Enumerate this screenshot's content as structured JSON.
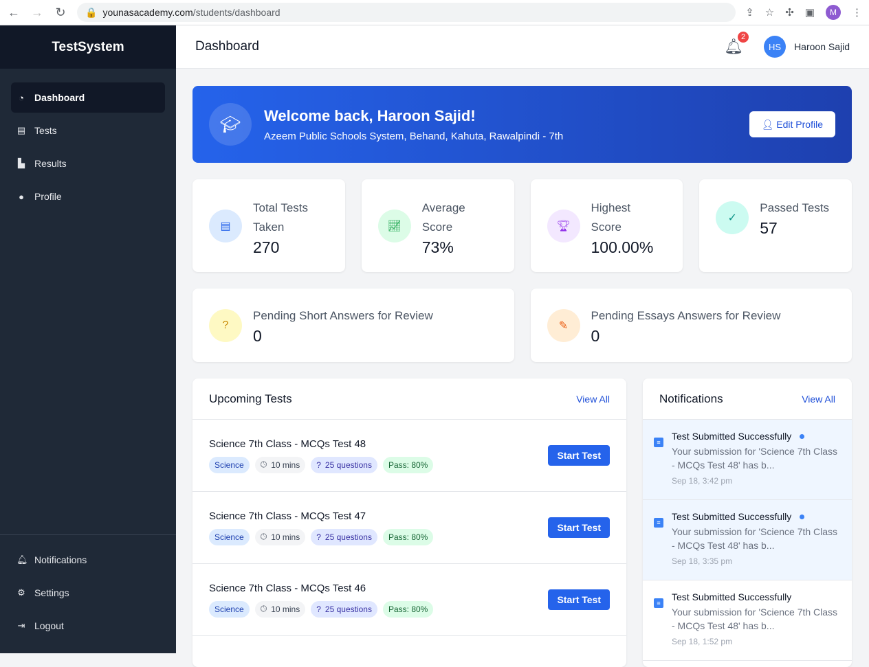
{
  "browser": {
    "url_domain": "younasacademy.com",
    "url_path": "/students/dashboard",
    "profile_initial": "M"
  },
  "sidebar": {
    "brand": "TestSystem",
    "items": [
      {
        "label": "Dashboard",
        "icon": "gauge-icon"
      },
      {
        "label": "Tests",
        "icon": "file-icon"
      },
      {
        "label": "Results",
        "icon": "chart-icon"
      },
      {
        "label": "Profile",
        "icon": "user-icon"
      }
    ],
    "bottom": [
      {
        "label": "Notifications"
      },
      {
        "label": "Settings"
      },
      {
        "label": "Logout"
      }
    ]
  },
  "header": {
    "title": "Dashboard",
    "notification_count": "2",
    "avatar_initials": "HS",
    "user_name": "Haroon Sajid"
  },
  "banner": {
    "title": "Welcome back, Haroon Sajid!",
    "subtitle": "Azeem Public Schools System, Behand, Kahuta, Rawalpindi - 7th",
    "edit_label": "Edit Profile"
  },
  "stats": [
    {
      "label": "Total Tests Taken",
      "value": "270",
      "color": "#2563eb",
      "bg": "#dbeafe"
    },
    {
      "label": "Average Score",
      "value": "73%",
      "color": "#16a34a",
      "bg": "#dcfce7"
    },
    {
      "label": "Highest Score",
      "value": "100.00%",
      "color": "#9333ea",
      "bg": "#f3e8ff"
    },
    {
      "label": "Passed Tests",
      "value": "57",
      "color": "#0d9488",
      "bg": "#ccfbf1"
    }
  ],
  "pending": [
    {
      "label": "Pending Short Answers for Review",
      "value": "0",
      "color": "#ca8a04",
      "bg": "#fef9c3"
    },
    {
      "label": "Pending Essays Answers for Review",
      "value": "0",
      "color": "#ea580c",
      "bg": "#ffedd5"
    }
  ],
  "upcoming": {
    "title": "Upcoming Tests",
    "view_all": "View All",
    "start_label": "Start Test",
    "tests": [
      {
        "name": "Science 7th Class - MCQs Test 48",
        "subject": "Science",
        "duration": "10 mins",
        "questions": "25 questions",
        "pass": "Pass: 80%"
      },
      {
        "name": "Science 7th Class - MCQs Test 47",
        "subject": "Science",
        "duration": "10 mins",
        "questions": "25 questions",
        "pass": "Pass: 80%"
      },
      {
        "name": "Science 7th Class - MCQs Test 46",
        "subject": "Science",
        "duration": "10 mins",
        "questions": "25 questions",
        "pass": "Pass: 80%"
      }
    ]
  },
  "notifications": {
    "title": "Notifications",
    "view_all": "View All",
    "items": [
      {
        "title": "Test Submitted Successfully",
        "message": "Your submission for 'Science 7th Class - MCQs Test 48' has b...",
        "time": "Sep 18, 3:42 pm",
        "unread": true
      },
      {
        "title": "Test Submitted Successfully",
        "message": "Your submission for 'Science 7th Class - MCQs Test 48' has b...",
        "time": "Sep 18, 3:35 pm",
        "unread": true
      },
      {
        "title": "Test Submitted Successfully",
        "message": "Your submission for 'Science 7th Class - MCQs Test 48' has b...",
        "time": "Sep 18, 1:52 pm",
        "unread": false
      }
    ]
  }
}
